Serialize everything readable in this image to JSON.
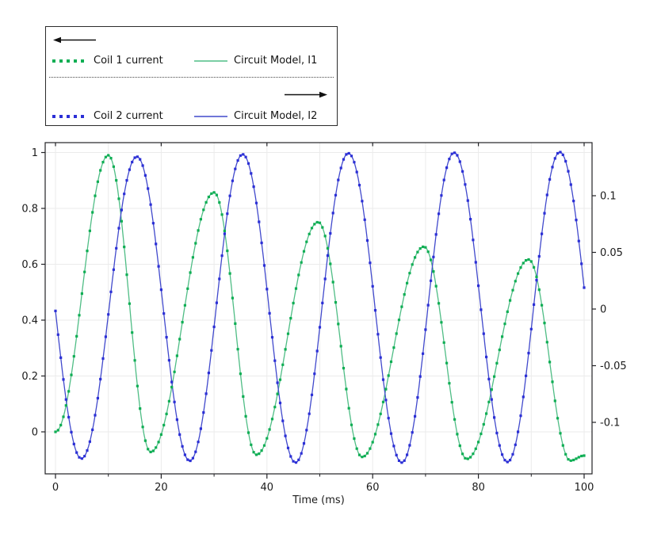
{
  "legend": {
    "groups": [
      {
        "dotted_label": "Coil 1 current",
        "solid_label": "Circuit Model, I1"
      },
      {
        "dotted_label": "Coil 2 current",
        "solid_label": "Circuit Model, I2"
      }
    ]
  },
  "chart_data": {
    "type": "line",
    "title": "",
    "xlabel": "Time (ms)",
    "grid": true,
    "legend_position": "top-left-outside",
    "colors": {
      "grid": "#ebebeb",
      "axis": "#222226",
      "text": "#1b1b1b",
      "background": "#ffffff"
    },
    "x_axis": {
      "label": "Time (ms)",
      "tick_values": [
        0,
        20,
        40,
        60,
        80,
        100
      ],
      "tick_labels": [
        "0",
        "20",
        "40",
        "60",
        "80",
        "100"
      ],
      "minor_tick_values": [
        10,
        30,
        50,
        70,
        90
      ],
      "gridline_values": [
        0,
        10,
        20,
        30,
        40,
        50,
        60,
        70,
        80,
        90,
        100
      ],
      "range_shown": [
        -2,
        101.6
      ]
    },
    "left_axis": {
      "tick_values": [
        0,
        0.2,
        0.4,
        0.6,
        0.8,
        1
      ],
      "tick_labels": [
        "0",
        "0.2",
        "0.4",
        "0.6",
        "0.8",
        "1"
      ],
      "gridline_values": [
        0,
        0.2,
        0.4,
        0.6,
        0.8,
        1
      ],
      "range_shown": [
        -0.15,
        1.036
      ]
    },
    "right_axis": {
      "tick_values": [
        0.1,
        0.05,
        0,
        -0.05,
        -0.1
      ],
      "tick_labels": [
        "0.1",
        "0.05",
        "0",
        "-0.05",
        "-0.1"
      ],
      "range_shown": [
        -0.146,
        0.147
      ]
    },
    "interpolation": "piecewise-half-cosine-through-extrema",
    "sample_step_ms": 0.5,
    "clip_range": [
      0,
      100
    ],
    "series": [
      {
        "id": "coil1-current",
        "name": "Coil 1 current",
        "axis": "left",
        "style": "dotted",
        "color": "#0fae54",
        "extrema_anchors": [
          [
            0,
            0
          ],
          [
            10,
            0.99
          ],
          [
            18,
            -0.072
          ],
          [
            30,
            0.857
          ],
          [
            38,
            -0.082
          ],
          [
            49.7,
            0.751
          ],
          [
            58,
            -0.09
          ],
          [
            69.7,
            0.663
          ],
          [
            77.8,
            -0.097
          ],
          [
            89.5,
            0.617
          ],
          [
            97.4,
            -0.103
          ],
          [
            100,
            -0.085
          ]
        ]
      },
      {
        "id": "circuit-model-i1",
        "name": "Circuit Model, I1",
        "axis": "left",
        "style": "solid",
        "color": "#4fbd85",
        "extrema_anchors": [
          [
            0,
            0
          ],
          [
            10,
            0.99
          ],
          [
            18,
            -0.072
          ],
          [
            30,
            0.857
          ],
          [
            38,
            -0.082
          ],
          [
            49.7,
            0.751
          ],
          [
            58,
            -0.09
          ],
          [
            69.7,
            0.663
          ],
          [
            77.8,
            -0.097
          ],
          [
            89.5,
            0.617
          ],
          [
            97.4,
            -0.103
          ],
          [
            100,
            -0.085
          ]
        ]
      },
      {
        "id": "coil2-current",
        "name": "Coil 2 current",
        "axis": "right",
        "style": "dotted",
        "color": "#2b2fd6",
        "extrema_anchors": [
          [
            -5.05,
            0.135
          ],
          [
            4.9,
            -0.132
          ],
          [
            15.4,
            0.1345
          ],
          [
            25.4,
            -0.134
          ],
          [
            35.4,
            0.1365
          ],
          [
            45.4,
            -0.1355
          ],
          [
            55.4,
            0.1375
          ],
          [
            65.5,
            -0.1355
          ],
          [
            75.4,
            0.138
          ],
          [
            85.5,
            -0.135
          ],
          [
            95.4,
            0.1385
          ],
          [
            105.4,
            -0.135
          ]
        ]
      },
      {
        "id": "circuit-model-i2",
        "name": "Circuit Model, I2",
        "axis": "right",
        "style": "solid",
        "color": "#4149cc",
        "extrema_anchors": [
          [
            -5.05,
            0.135
          ],
          [
            4.9,
            -0.132
          ],
          [
            15.4,
            0.1345
          ],
          [
            25.4,
            -0.134
          ],
          [
            35.4,
            0.1365
          ],
          [
            45.4,
            -0.1355
          ],
          [
            55.4,
            0.1375
          ],
          [
            65.5,
            -0.1355
          ],
          [
            75.4,
            0.138
          ],
          [
            85.5,
            -0.135
          ],
          [
            95.4,
            0.1385
          ],
          [
            105.4,
            -0.135
          ]
        ]
      }
    ]
  }
}
